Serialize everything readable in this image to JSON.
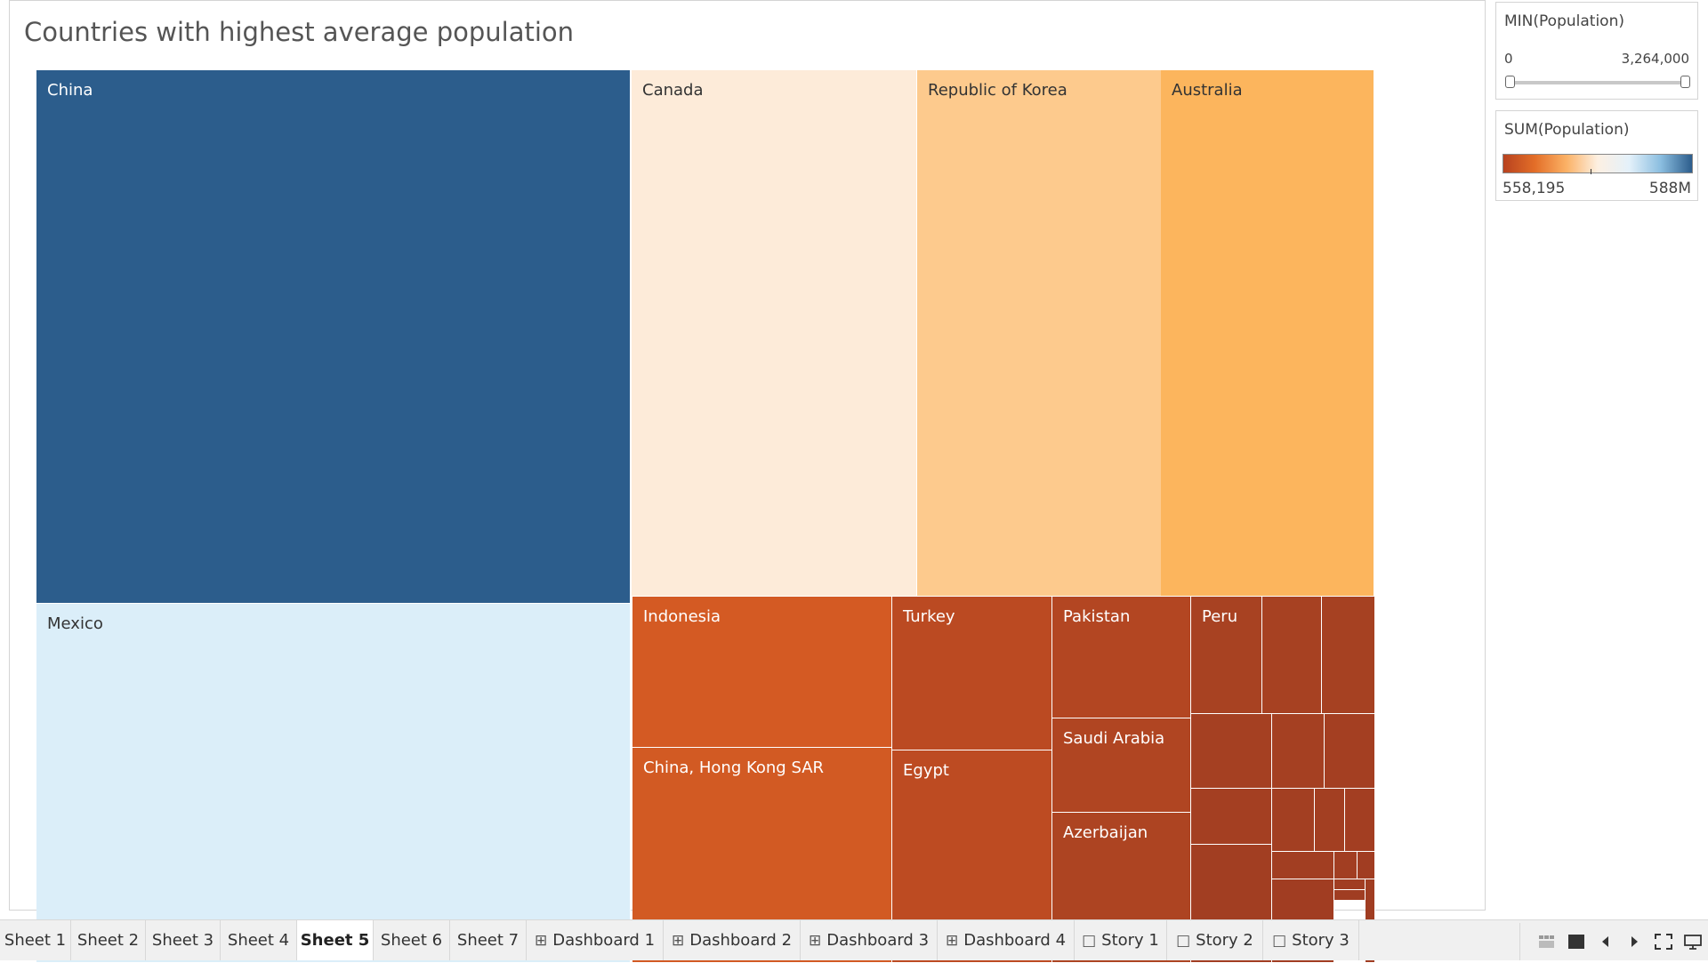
{
  "title": "Countries with highest average population",
  "chart_data": {
    "type": "treemap",
    "tiles": [
      {
        "label": "China",
        "color": "#2c5d8c",
        "text_color": "#ffffff"
      },
      {
        "label": "Mexico",
        "color": "#dbeef9",
        "text_color": "#333333"
      },
      {
        "label": "Canada",
        "color": "#fdebd9",
        "text_color": "#333333"
      },
      {
        "label": "Republic of Korea",
        "color": "#fdca8d",
        "text_color": "#333333"
      },
      {
        "label": "Australia",
        "color": "#fcb55d",
        "text_color": "#333333"
      },
      {
        "label": "Indonesia",
        "color": "#d45a23",
        "text_color": "#ffffff"
      },
      {
        "label": "China, Hong Kong SAR",
        "color": "#d25a23",
        "text_color": "#ffffff"
      },
      {
        "label": "Turkey",
        "color": "#bb4a22",
        "text_color": "#ffffff"
      },
      {
        "label": "Egypt",
        "color": "#bd4b22",
        "text_color": "#ffffff"
      },
      {
        "label": "Pakistan",
        "color": "#b34622",
        "text_color": "#ffffff"
      },
      {
        "label": "Saudi Arabia",
        "color": "#b04522",
        "text_color": "#ffffff"
      },
      {
        "label": "Azerbaijan",
        "color": "#ad4422",
        "text_color": "#ffffff"
      },
      {
        "label": "Peru",
        "color": "#a84222",
        "text_color": "#ffffff"
      },
      {
        "label": "",
        "color": "#a74122",
        "text_color": "#ffffff"
      },
      {
        "label": "",
        "color": "#a64122",
        "text_color": "#ffffff"
      },
      {
        "label": "",
        "color": "#a54022",
        "text_color": "#ffffff"
      },
      {
        "label": "",
        "color": "#a54022",
        "text_color": "#ffffff"
      },
      {
        "label": "",
        "color": "#a43f22",
        "text_color": "#ffffff"
      },
      {
        "label": "",
        "color": "#a43f22",
        "text_color": "#ffffff"
      },
      {
        "label": "",
        "color": "#a33f22",
        "text_color": "#ffffff"
      },
      {
        "label": "",
        "color": "#a33f22",
        "text_color": "#ffffff"
      },
      {
        "label": "",
        "color": "#a33e22",
        "text_color": "#ffffff"
      },
      {
        "label": "",
        "color": "#a23e22",
        "text_color": "#ffffff"
      },
      {
        "label": "",
        "color": "#a23e22",
        "text_color": "#ffffff"
      },
      {
        "label": "",
        "color": "#a23e22",
        "text_color": "#ffffff"
      },
      {
        "label": "",
        "color": "#a13d22",
        "text_color": "#ffffff"
      },
      {
        "label": "",
        "color": "#a13d22",
        "text_color": "#ffffff"
      },
      {
        "label": "",
        "color": "#a13d22",
        "text_color": "#ffffff"
      },
      {
        "label": "",
        "color": "#a03d22",
        "text_color": "#ffffff"
      },
      {
        "label": "",
        "color": "#a03d22",
        "text_color": "#ffffff"
      }
    ]
  },
  "min_filter": {
    "title": "MIN(Population)",
    "min_label": "0",
    "max_label": "3,264,000"
  },
  "color_legend": {
    "title": "SUM(Population)",
    "min_label": "558,195",
    "max_label": "588M",
    "ramp_colors": [
      "#b8421f",
      "#e36e28",
      "#fbb165",
      "#fdf0e2",
      "#e4f1fa",
      "#8bbee0",
      "#2c5d8c"
    ]
  },
  "tabs": [
    {
      "label": "Sheet 1",
      "icon": "",
      "active": false
    },
    {
      "label": "Sheet 2",
      "icon": "",
      "active": false
    },
    {
      "label": "Sheet 3",
      "icon": "",
      "active": false
    },
    {
      "label": "Sheet 4",
      "icon": "",
      "active": false
    },
    {
      "label": "Sheet 5",
      "icon": "",
      "active": true
    },
    {
      "label": "Sheet 6",
      "icon": "",
      "active": false
    },
    {
      "label": "Sheet 7",
      "icon": "",
      "active": false
    },
    {
      "label": "Dashboard 1",
      "icon": "dashboard-icon",
      "active": false
    },
    {
      "label": "Dashboard 2",
      "icon": "dashboard-icon",
      "active": false
    },
    {
      "label": "Dashboard 3",
      "icon": "dashboard-icon",
      "active": false
    },
    {
      "label": "Dashboard 4",
      "icon": "dashboard-icon",
      "active": false
    },
    {
      "label": "Story 1",
      "icon": "story-icon",
      "active": false
    },
    {
      "label": "Story 2",
      "icon": "story-icon",
      "active": false
    },
    {
      "label": "Story 3",
      "icon": "story-icon",
      "active": false
    }
  ],
  "nav_controls": [
    {
      "name": "show-filmstrip-icon"
    },
    {
      "name": "show-tabs-icon"
    },
    {
      "name": "previous-sheet-icon"
    },
    {
      "name": "next-sheet-icon"
    },
    {
      "name": "presentation-mode-icon"
    },
    {
      "name": "present-icon"
    }
  ]
}
